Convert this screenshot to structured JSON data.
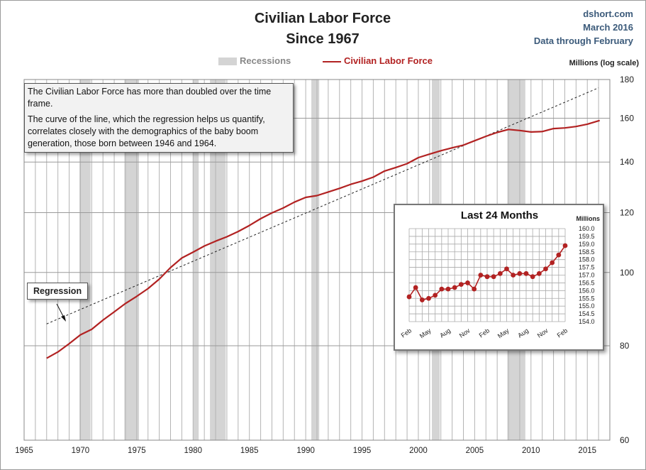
{
  "header": {
    "title_line1": "Civilian Labor Force",
    "title_line2": "Since 1967",
    "source_name": "dshort.com",
    "source_date": "March 2016",
    "source_note": "Data through February"
  },
  "legend": {
    "recessions_label": "Recessions",
    "series_label": "Civilian Labor Force"
  },
  "annotations": {
    "note_p1": "The Civilian Labor Force has more than doubled over the time frame.",
    "note_p2": "The curve of the line, which the regression helps us quantify, correlates closely with the demographics of the baby boom generation, those born between 1946 and 1964.",
    "regression_label": "Regression"
  },
  "colors": {
    "series": "#b22222",
    "recession": "#d4d4d4",
    "grid": "#b4b4b4",
    "regression": "#222222"
  },
  "chart_data": [
    {
      "type": "line",
      "title": "Civilian Labor Force Since 1967",
      "xlabel": "",
      "ylabel": "Millions (log scale)",
      "yscale": "log",
      "xlim": [
        1965,
        2017
      ],
      "ylim": [
        60,
        180
      ],
      "x_ticks": [
        1965,
        1970,
        1975,
        1980,
        1985,
        1990,
        1995,
        2000,
        2005,
        2010,
        2015
      ],
      "y_ticks": [
        60,
        80,
        100,
        120,
        140,
        160,
        180
      ],
      "grid": true,
      "recessions": [
        [
          1969.9,
          1970.9
        ],
        [
          1973.9,
          1975.2
        ],
        [
          1980.0,
          1980.5
        ],
        [
          1981.5,
          1982.9
        ],
        [
          1990.5,
          1991.2
        ],
        [
          2001.2,
          2001.9
        ],
        [
          2007.9,
          2009.5
        ]
      ],
      "series": [
        {
          "name": "Civilian Labor Force",
          "x": [
            1967.0,
            1968.0,
            1969.0,
            1970.0,
            1971.0,
            1972.0,
            1973.0,
            1974.0,
            1975.0,
            1976.0,
            1977.0,
            1978.0,
            1979.0,
            1980.0,
            1981.0,
            1982.0,
            1983.0,
            1984.0,
            1985.0,
            1986.0,
            1987.0,
            1988.0,
            1989.0,
            1990.0,
            1991.0,
            1992.0,
            1993.0,
            1994.0,
            1995.0,
            1996.0,
            1997.0,
            1998.0,
            1999.0,
            2000.0,
            2001.0,
            2002.0,
            2003.0,
            2004.0,
            2005.0,
            2006.0,
            2007.0,
            2008.0,
            2009.0,
            2010.0,
            2011.0,
            2012.0,
            2013.0,
            2014.0,
            2015.0,
            2016.1
          ],
          "values": [
            77.0,
            78.5,
            80.5,
            82.7,
            84.1,
            86.5,
            88.7,
            91.0,
            93.0,
            95.2,
            98.0,
            101.5,
            104.5,
            106.4,
            108.4,
            110.0,
            111.5,
            113.3,
            115.4,
            117.8,
            119.9,
            121.7,
            123.9,
            125.7,
            126.4,
            127.8,
            129.2,
            130.8,
            132.1,
            133.7,
            136.2,
            137.7,
            139.3,
            141.9,
            143.4,
            144.9,
            146.2,
            147.4,
            149.4,
            151.4,
            153.2,
            154.6,
            154.1,
            153.4,
            153.6,
            155.0,
            155.3,
            156.0,
            157.1,
            158.9
          ]
        },
        {
          "name": "Regression",
          "x": [
            1967.0,
            2016.0
          ],
          "values": [
            85.5,
            175.5
          ]
        }
      ]
    },
    {
      "type": "line",
      "title": "Last 24 Months",
      "ylabel": "Millions",
      "ylim": [
        154.0,
        160.0
      ],
      "y_ticks": [
        "160.0",
        "159.5",
        "159.0",
        "158.5",
        "158.0",
        "157.5",
        "157.0",
        "156.5",
        "156.0",
        "155.5",
        "155.0",
        "154.5",
        "154.0"
      ],
      "categories": [
        "Feb",
        "Mar",
        "Apr",
        "May",
        "Jun",
        "Jul",
        "Aug",
        "Sep",
        "Oct",
        "Nov",
        "Dec",
        "Jan",
        "Feb",
        "Mar",
        "Apr",
        "May",
        "Jun",
        "Jul",
        "Aug",
        "Sep",
        "Oct",
        "Nov",
        "Dec",
        "Jan",
        "Feb"
      ],
      "tick_labels": [
        "Feb",
        "May",
        "Aug",
        "Nov",
        "Feb",
        "May",
        "Aug",
        "Nov",
        "Feb"
      ],
      "series": [
        {
          "name": "Civilian Labor Force",
          "values": [
            155.6,
            156.2,
            155.4,
            155.5,
            155.7,
            156.1,
            156.1,
            156.2,
            156.4,
            156.5,
            156.1,
            157.0,
            156.9,
            156.9,
            157.1,
            157.4,
            157.0,
            157.1,
            157.1,
            156.9,
            157.1,
            157.4,
            157.8,
            158.3,
            158.9
          ]
        }
      ]
    }
  ]
}
